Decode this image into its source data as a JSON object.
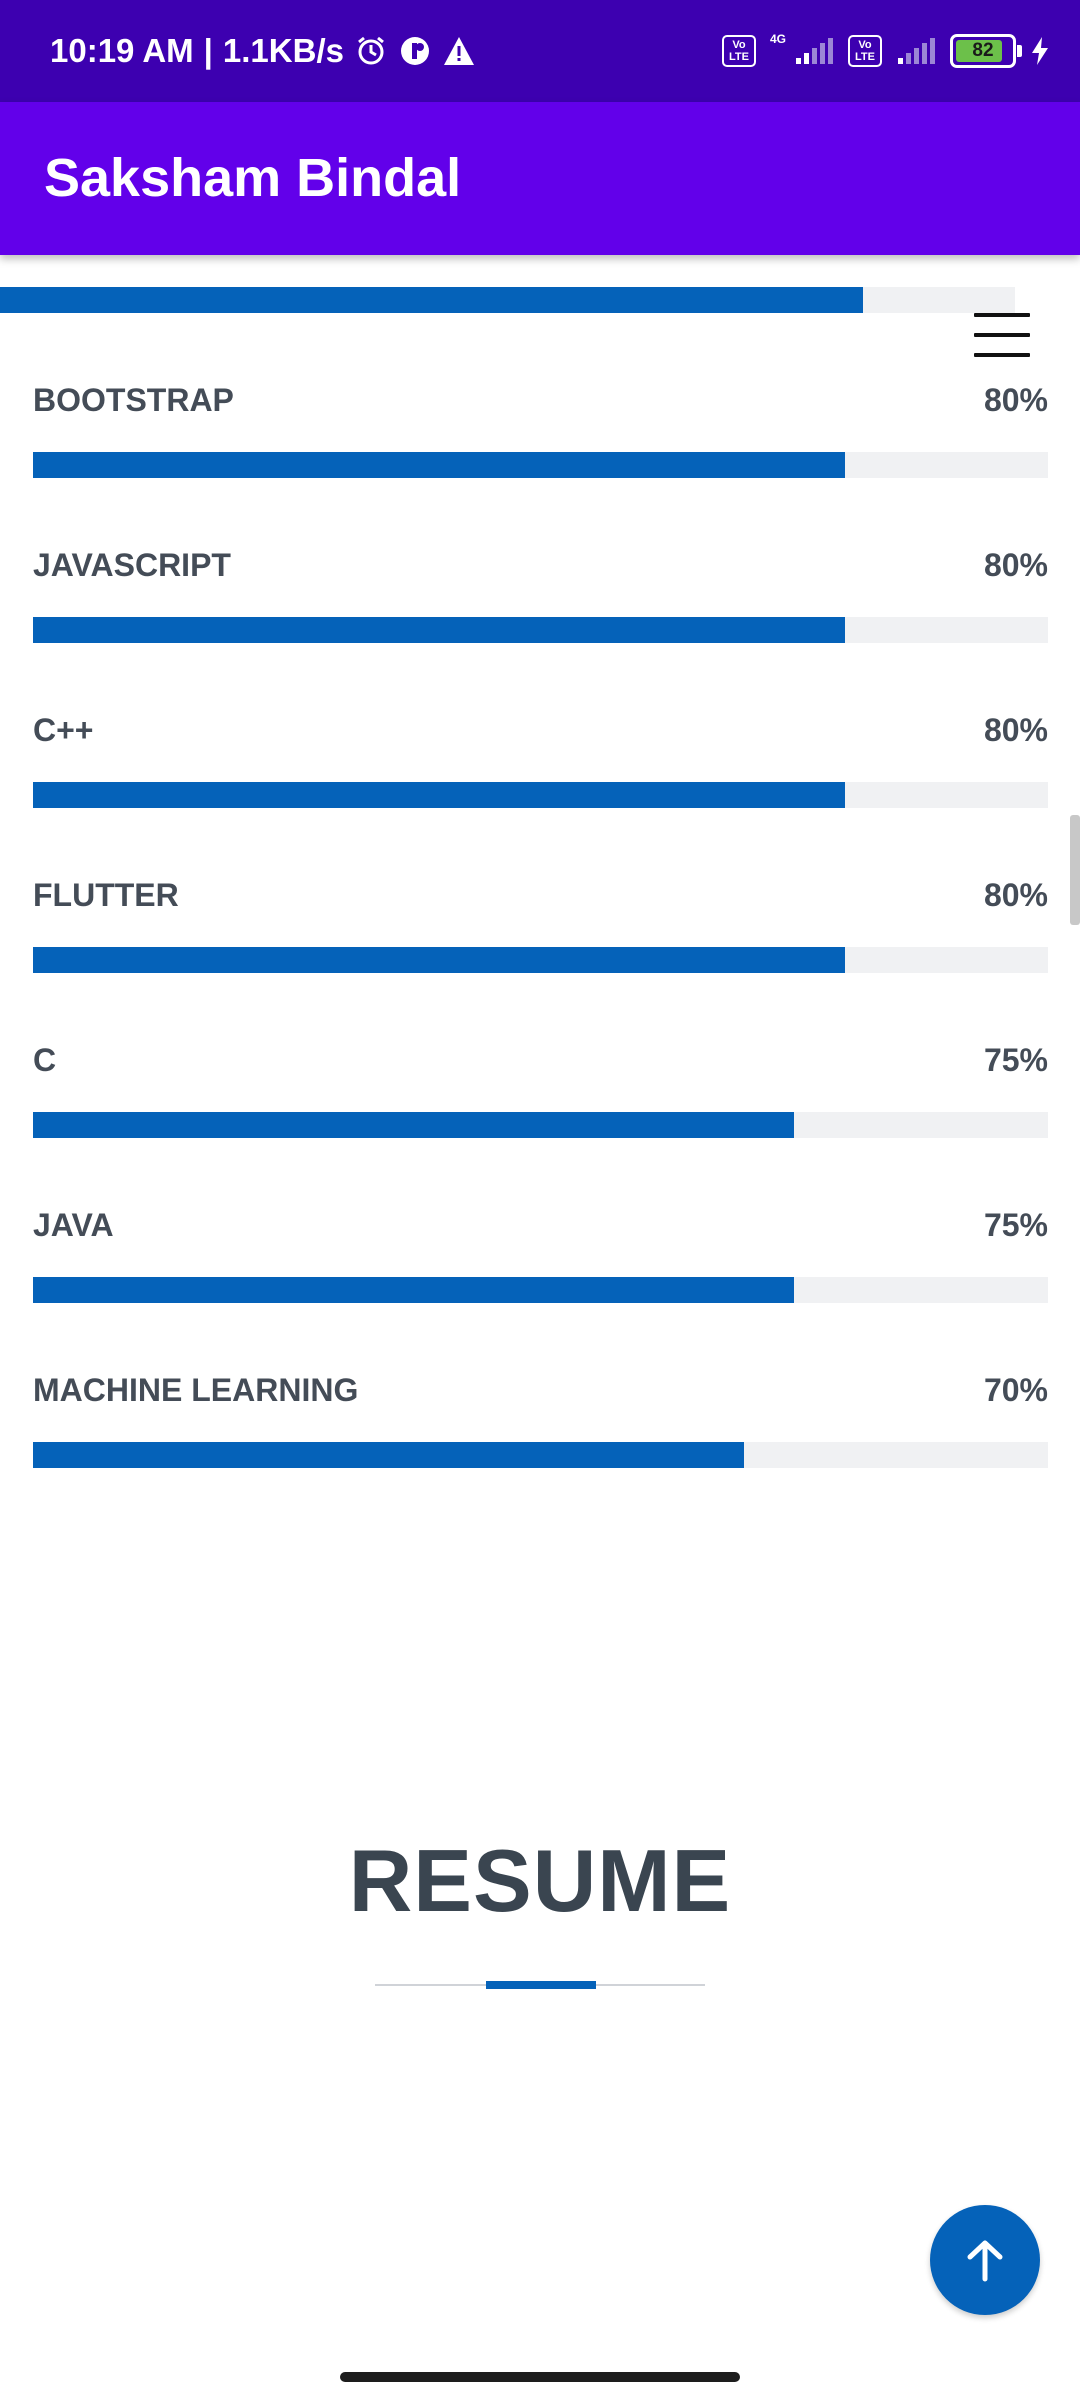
{
  "status_bar": {
    "time": "10:19 AM",
    "separator": "|",
    "speed": "1.1KB/s",
    "volte_label_top": "Vo",
    "volte_label_bottom": "LTE",
    "network_type": "4G",
    "battery_level": "82",
    "icons": [
      "alarm-icon",
      "vpn-icon",
      "warning-icon",
      "volte-icon",
      "signal-icon",
      "battery-icon",
      "charging-icon"
    ]
  },
  "app_bar": {
    "title": "Saksham Bindal"
  },
  "menu": {
    "icon": "hamburger-menu-icon"
  },
  "skills": {
    "top_partial": {
      "progress": 85
    },
    "items": [
      {
        "label": "BOOTSTRAP",
        "percent_text": "80%",
        "progress": 80
      },
      {
        "label": "JAVASCRIPT",
        "percent_text": "80%",
        "progress": 80
      },
      {
        "label": "C++",
        "percent_text": "80%",
        "progress": 80
      },
      {
        "label": "FLUTTER",
        "percent_text": "80%",
        "progress": 80
      },
      {
        "label": "C",
        "percent_text": "75%",
        "progress": 75
      },
      {
        "label": "JAVA",
        "percent_text": "75%",
        "progress": 75
      },
      {
        "label": "MACHINE LEARNING",
        "percent_text": "70%",
        "progress": 70
      }
    ]
  },
  "resume": {
    "title": "RESUME"
  },
  "fab": {
    "icon": "arrow-up-icon"
  },
  "colors": {
    "status_bar": "#3d00b0",
    "app_bar": "#6200ea",
    "accent": "#0562b9",
    "track": "#f0f1f3",
    "text": "#444c57"
  }
}
